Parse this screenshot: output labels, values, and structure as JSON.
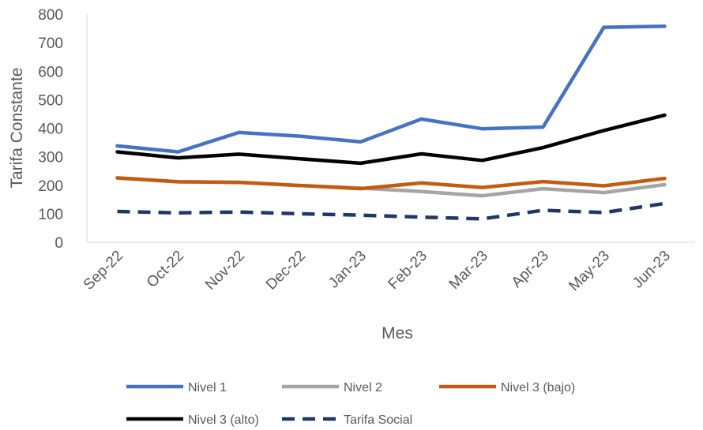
{
  "chart_data": {
    "type": "line",
    "xlabel": "Mes",
    "ylabel": "Tarifa Constante",
    "ylim": [
      0,
      800
    ],
    "yticks": [
      0,
      100,
      200,
      300,
      400,
      500,
      600,
      700,
      800
    ],
    "grid": false,
    "legend_position": "bottom",
    "categories": [
      "Sep-22",
      "Oct-22",
      "Nov-22",
      "Dec-22",
      "Jan-23",
      "Feb-23",
      "Mar-23",
      "Apr-23",
      "May-23",
      "Jun-23"
    ],
    "series": [
      {
        "name": "Nivel 1",
        "color": "#4472C4",
        "dashed": false,
        "values": [
          338,
          317,
          385,
          372,
          352,
          432,
          398,
          404,
          754,
          758
        ]
      },
      {
        "name": "Nivel 2",
        "color": "#A5A5A5",
        "dashed": false,
        "values": [
          225,
          212,
          210,
          199,
          190,
          178,
          163,
          188,
          174,
          202
        ]
      },
      {
        "name": "Nivel 3 (bajo)",
        "color": "#C55A11",
        "dashed": false,
        "values": [
          226,
          212,
          210,
          199,
          188,
          208,
          192,
          213,
          198,
          224
        ]
      },
      {
        "name": "Nivel 3 (alto)",
        "color": "#000000",
        "dashed": false,
        "values": [
          317,
          296,
          309,
          293,
          277,
          310,
          287,
          332,
          392,
          446
        ]
      },
      {
        "name": "Tarifa Social",
        "color": "#203864",
        "dashed": true,
        "values": [
          108,
          103,
          106,
          100,
          95,
          88,
          82,
          112,
          104,
          136
        ]
      }
    ]
  }
}
